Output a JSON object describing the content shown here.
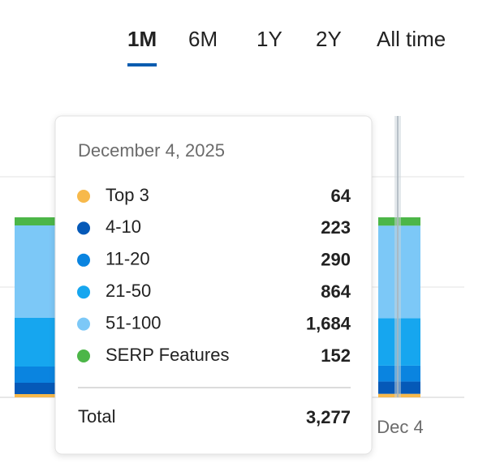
{
  "tabs": [
    "1M",
    "6M",
    "1Y",
    "2Y",
    "All time"
  ],
  "active_tab": 0,
  "x_label": "Dec 4",
  "tooltip": {
    "date": "December 4, 2025",
    "rows": [
      {
        "label": "Top 3",
        "value": 64,
        "color": "#f7b94b"
      },
      {
        "label": "4-10",
        "value": 223,
        "color": "#0559b8"
      },
      {
        "label": "11-20",
        "value": 290,
        "color": "#0a84e0"
      },
      {
        "label": "21-50",
        "value": 864,
        "color": "#16a6ef"
      },
      {
        "label": "51-100",
        "value": 1684,
        "value_label": "1,684",
        "color": "#7cc8f7"
      },
      {
        "label": "SERP Features",
        "value": 152,
        "color": "#4cb648"
      }
    ],
    "total_label": "Total",
    "total": 3277,
    "total_value_label": "3,277"
  }
}
